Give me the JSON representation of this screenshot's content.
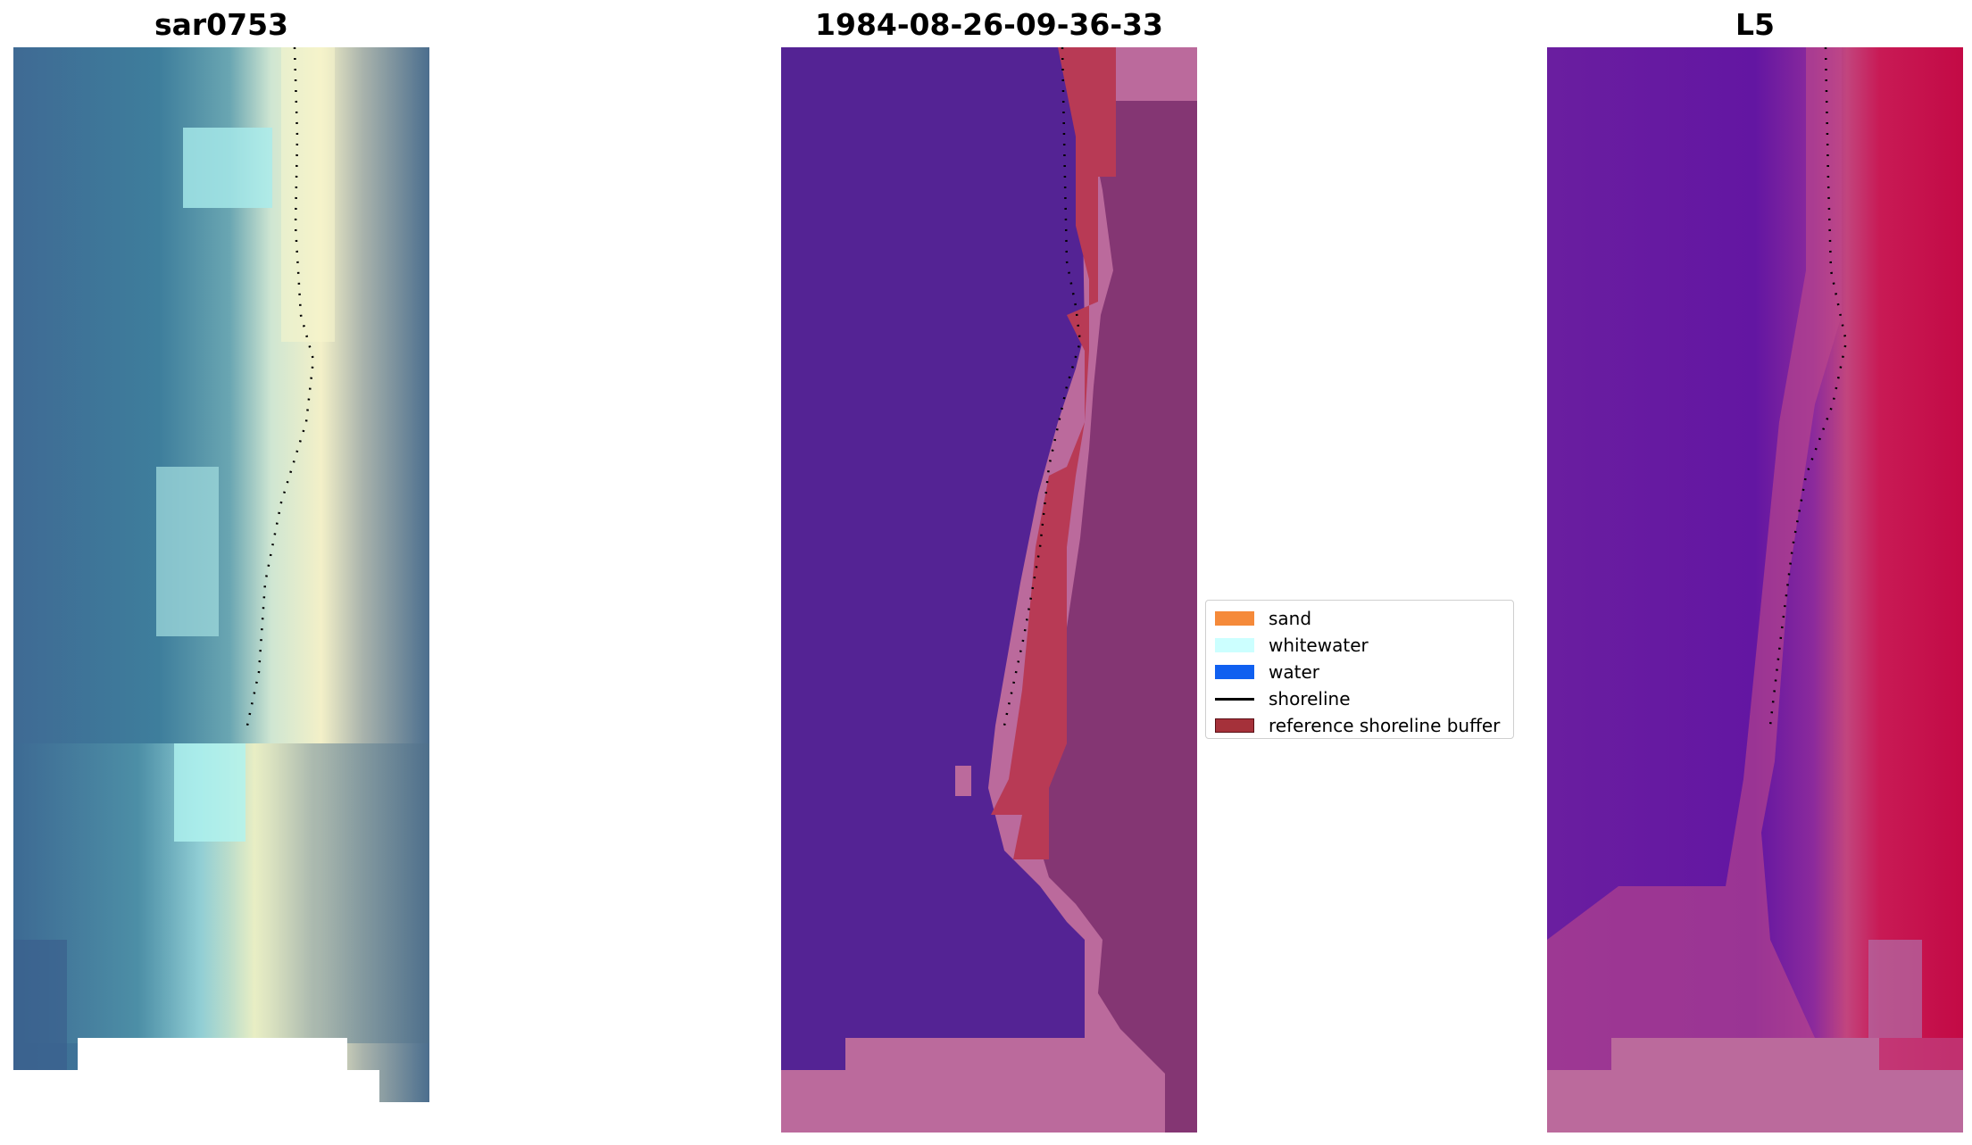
{
  "panels": {
    "left_title": "sar0753",
    "middle_title": "1984-08-26-09-36-33",
    "right_title": "L5"
  },
  "legend": {
    "items": [
      {
        "label": "sand",
        "color": "#f58a3a",
        "kind": "patch"
      },
      {
        "label": "whitewater",
        "color": "#ccffff",
        "kind": "patch"
      },
      {
        "label": "water",
        "color": "#1060f0",
        "kind": "patch"
      },
      {
        "label": "shoreline",
        "color": "#000000",
        "kind": "line"
      },
      {
        "label": "reference shoreline buffer",
        "color": "#a5313a",
        "kind": "patch"
      }
    ]
  }
}
